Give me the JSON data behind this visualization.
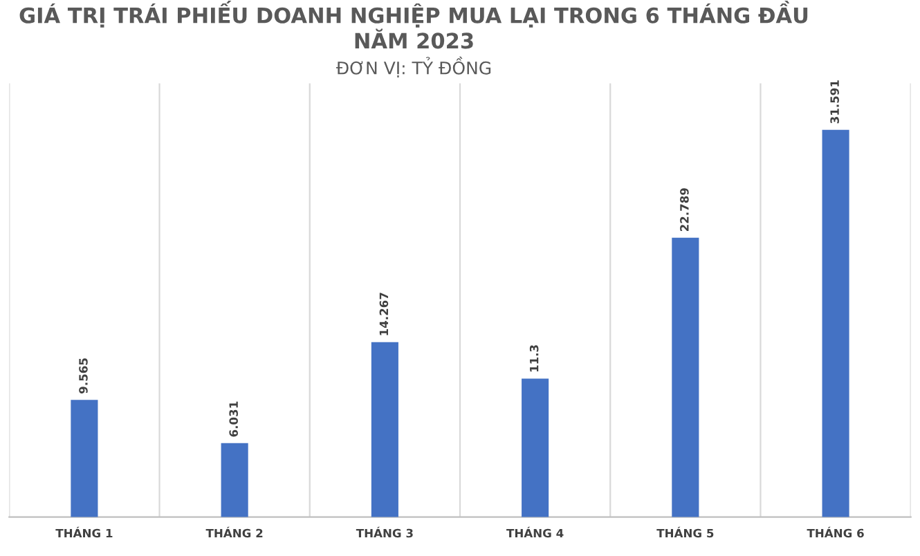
{
  "chart_data": {
    "type": "bar",
    "title": "GIÁ TRỊ TRÁI PHIẾU DOANH NGHIỆP MUA LẠI TRONG 6 THÁNG ĐẦU\nNĂM 2023",
    "subtitle": "ĐƠN VỊ: TỶ ĐỒNG",
    "categories": [
      "THÁNG 1",
      "THÁNG 2",
      "THÁNG 3",
      "THÁNG 4",
      "THÁNG 5",
      "THÁNG 6"
    ],
    "values": [
      9.565,
      6.031,
      14.267,
      11.3,
      22.789,
      31.591
    ],
    "color": "#4472c4",
    "data_labels": true,
    "grid": "x"
  }
}
